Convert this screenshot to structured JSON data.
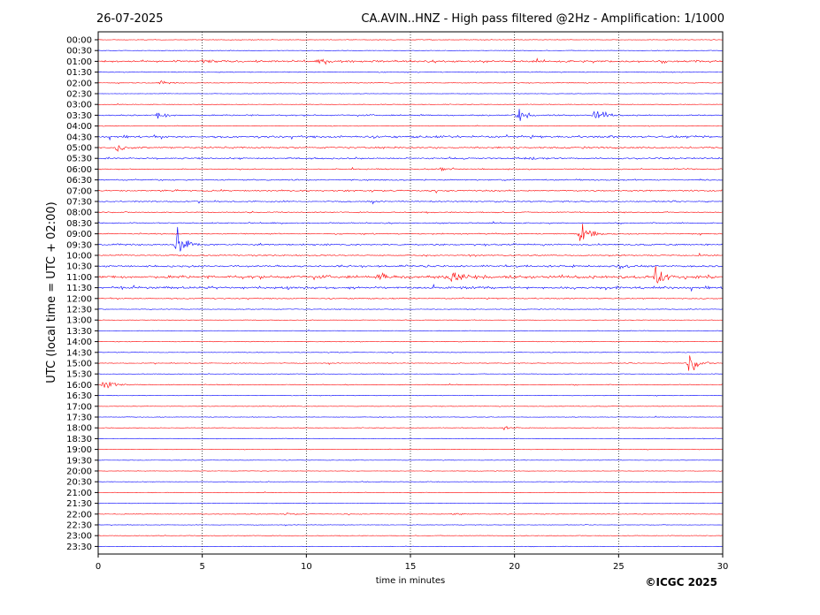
{
  "header": {
    "date": "26-07-2025",
    "title": "CA.AVIN..HNZ - High pass filtered @2Hz - Amplification: 1/1000"
  },
  "footer": {
    "copyright": "©ICGC 2025"
  },
  "colors": {
    "trace_a": "#ff0000",
    "trace_b": "#0000ff",
    "grid": "#000000"
  },
  "chart_data": {
    "type": "line",
    "xlabel": "time in minutes",
    "ylabel": "UTC (local time = UTC + 02:00)",
    "xlim": [
      0,
      30
    ],
    "xticks": [
      "0",
      "5",
      "10",
      "15",
      "20",
      "25",
      "30"
    ],
    "vertical_grid": [
      5,
      10,
      15,
      20,
      25
    ],
    "grid": "dotted vertical",
    "rows": [
      "00:00",
      "00:30",
      "01:00",
      "01:30",
      "02:00",
      "02:30",
      "03:00",
      "03:30",
      "04:00",
      "04:30",
      "05:00",
      "05:30",
      "06:00",
      "06:30",
      "07:00",
      "07:30",
      "08:00",
      "08:30",
      "09:00",
      "09:30",
      "10:00",
      "10:30",
      "11:00",
      "11:30",
      "12:00",
      "12:30",
      "13:00",
      "13:30",
      "14:00",
      "14:30",
      "15:00",
      "15:30",
      "16:00",
      "16:30",
      "17:00",
      "17:30",
      "18:00",
      "18:30",
      "19:00",
      "19:30",
      "20:00",
      "20:30",
      "21:00",
      "21:30",
      "22:00",
      "22:30",
      "23:00",
      "23:30"
    ],
    "row_colors": "alternating red/blue starting with red",
    "noise_level": [
      0.6,
      0.6,
      2.2,
      0.9,
      0.8,
      0.5,
      0.6,
      1.4,
      0.6,
      2.4,
      1.8,
      1.6,
      1.1,
      1.4,
      1.6,
      1.3,
      1.1,
      1.2,
      1.2,
      1.8,
      1.4,
      2.0,
      3.2,
      2.6,
      1.2,
      0.8,
      0.5,
      0.6,
      0.8,
      0.6,
      0.7,
      0.6,
      0.8,
      0.6,
      0.6,
      0.6,
      0.6,
      0.6,
      0.5,
      0.5,
      0.5,
      0.6,
      0.5,
      0.6,
      0.7,
      0.5,
      0.6,
      0.5
    ],
    "events": [
      {
        "row": "01:00",
        "minute": 5.1,
        "amplitude": 4
      },
      {
        "row": "01:00",
        "minute": 10.7,
        "amplitude": 3
      },
      {
        "row": "02:00",
        "minute": 3.0,
        "amplitude": 3
      },
      {
        "row": "03:30",
        "minute": 2.9,
        "amplitude": 7
      },
      {
        "row": "03:30",
        "minute": 20.1,
        "amplitude": 12
      },
      {
        "row": "03:30",
        "minute": 23.9,
        "amplitude": 12
      },
      {
        "row": "05:00",
        "minute": 0.9,
        "amplitude": 6
      },
      {
        "row": "05:30",
        "minute": 20.8,
        "amplitude": 3
      },
      {
        "row": "06:00",
        "minute": 16.5,
        "amplitude": 3
      },
      {
        "row": "09:00",
        "minute": 23.2,
        "amplitude": 22
      },
      {
        "row": "09:30",
        "minute": 3.8,
        "amplitude": 28
      },
      {
        "row": "10:30",
        "minute": 25.0,
        "amplitude": 4
      },
      {
        "row": "11:00",
        "minute": 17.0,
        "amplitude": 16
      },
      {
        "row": "11:00",
        "minute": 26.8,
        "amplitude": 20
      },
      {
        "row": "11:00",
        "minute": 13.6,
        "amplitude": 5
      },
      {
        "row": "15:00",
        "minute": 28.4,
        "amplitude": 17
      },
      {
        "row": "16:00",
        "minute": 0.3,
        "amplitude": 14
      },
      {
        "row": "18:00",
        "minute": 19.5,
        "amplitude": 3
      },
      {
        "row": "22:00",
        "minute": 17.0,
        "amplitude": 3
      },
      {
        "row": "22:00",
        "minute": 9.1,
        "amplitude": 2
      }
    ]
  }
}
